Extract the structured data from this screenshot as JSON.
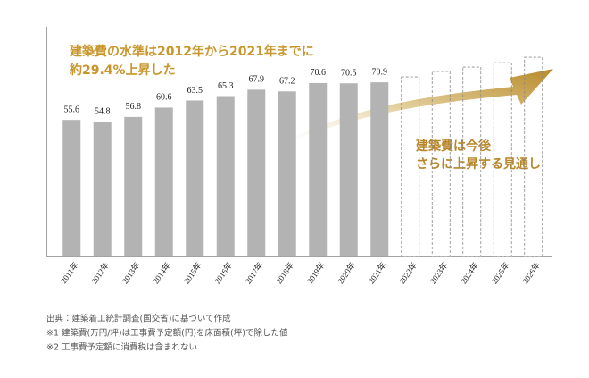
{
  "chart_data": {
    "type": "bar",
    "annotations": [
      "建築費の水準は2012年から2021年までに",
      "約29.4%上昇した",
      "建築費は今後",
      "さらに上昇する見通し"
    ],
    "categories": [
      "2011年",
      "2012年",
      "2013年",
      "2014年",
      "2015年",
      "2016年",
      "2017年",
      "2018年",
      "2019年",
      "2020年",
      "2021年",
      "2022年",
      "2023年",
      "2024年",
      "2025年",
      "2026年"
    ],
    "values": [
      55.6,
      54.8,
      56.8,
      60.6,
      63.5,
      65.3,
      67.9,
      67.2,
      70.6,
      70.5,
      70.9,
      null,
      null,
      null,
      null,
      null
    ],
    "forecast_values": [
      null,
      null,
      null,
      null,
      null,
      null,
      null,
      null,
      null,
      null,
      null,
      73.1,
      75.3,
      77.1,
      78.9,
      81.1
    ],
    "color": "#b3b3b3",
    "ylim": [
      0,
      93.5
    ],
    "notes": [
      "出典：建築着工統計調査(国交省)に基づいて作成",
      "※1 建築費(万円/坪)は工事費予定額(円)を床面積(坪)で除した値",
      "※2 工事費予定額に消費税は含まれない"
    ]
  }
}
